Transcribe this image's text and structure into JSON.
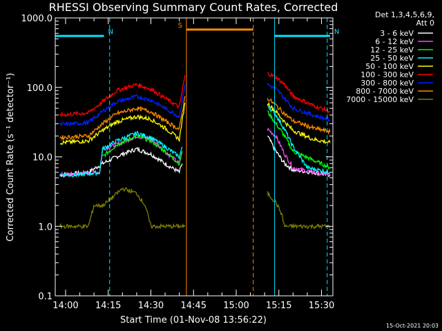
{
  "chart_data": {
    "type": "line",
    "title": "RHESSI Observing Summary Count Rates, Corrected",
    "xlabel": "Start Time (01-Nov-08 13:56:22)",
    "ylabel": "Corrected Count Rate (s⁻¹ detector⁻¹)",
    "y_scale": "log",
    "ylim": [
      0.1,
      1000
    ],
    "xlim": [
      "13:56:22",
      "15:34:00"
    ],
    "x_ticks": [
      "14:00",
      "14:15",
      "14:30",
      "14:45",
      "15:00",
      "15:15",
      "15:30"
    ],
    "y_ticks": [
      "0.1",
      "1.0",
      "10.0",
      "100.0",
      "1000.0"
    ],
    "detectors_label": [
      "Det 1,3,4,5,6,9,",
      "Att 0"
    ],
    "timestamp": "15-Oct-2021 20:03",
    "flags": [
      {
        "label": "N",
        "color": "#00e5ff",
        "start": "13:56:22",
        "end": "14:13:30",
        "level": 550
      },
      {
        "label": "N",
        "color": "#00e5ff",
        "start": "15:13:30",
        "end": "15:33:00",
        "level": 550
      },
      {
        "label": "S",
        "color": "#ff8c00",
        "start": "14:42:30",
        "end": "15:06:00",
        "level": 680
      }
    ],
    "markers": [
      {
        "time": "13:56:22",
        "color": "#00e5ff",
        "style": "solid"
      },
      {
        "time": "14:15:30",
        "color": "#00e5ff",
        "style": "dashed"
      },
      {
        "time": "14:42:30",
        "color": "#ff8c00",
        "style": "solid"
      },
      {
        "time": "15:06:00",
        "color": "#ff8c00",
        "style": "dashed"
      },
      {
        "time": "15:13:30",
        "color": "#00e5ff",
        "style": "solid"
      },
      {
        "time": "15:32:00",
        "color": "#00e5ff",
        "style": "dashed"
      }
    ],
    "series": [
      {
        "name": "3 - 6 keV",
        "color": "#ffffff",
        "segments": [
          [
            [
              "13:58",
              5.5
            ],
            [
              "14:08",
              6
            ],
            [
              "14:13",
              8
            ],
            [
              "14:20",
              11
            ],
            [
              "14:25",
              13
            ],
            [
              "14:30",
              11
            ],
            [
              "14:35",
              8
            ],
            [
              "14:40",
              6
            ],
            [
              "14:41",
              8
            ]
          ],
          [
            [
              "15:11",
              20
            ],
            [
              "15:14",
              12
            ],
            [
              "15:17",
              8
            ],
            [
              "15:20",
              6.5
            ],
            [
              "15:27",
              6
            ],
            [
              "15:33",
              5.5
            ]
          ]
        ]
      },
      {
        "name": "6 - 12 keV",
        "color": "#ff44ff",
        "segments": [
          [
            [
              "13:58",
              5.5
            ],
            [
              "14:12",
              6
            ],
            [
              "14:13",
              13
            ],
            [
              "14:18",
              15
            ],
            [
              "14:25",
              20
            ],
            [
              "14:30",
              18
            ],
            [
              "14:35",
              12
            ],
            [
              "14:40",
              8
            ],
            [
              "14:41",
              12
            ]
          ],
          [
            [
              "15:11",
              25
            ],
            [
              "15:14",
              20
            ],
            [
              "15:17",
              11
            ],
            [
              "15:20",
              7
            ],
            [
              "15:27",
              6
            ],
            [
              "15:33",
              5.5
            ]
          ]
        ]
      },
      {
        "name": "12 - 25 keV",
        "color": "#00ff00",
        "segments": [
          [
            [
              "14:13",
              10
            ],
            [
              "14:18",
              15
            ],
            [
              "14:25",
              20
            ],
            [
              "14:30",
              17
            ],
            [
              "14:35",
              12
            ],
            [
              "14:40",
              8
            ],
            [
              "14:41",
              12
            ]
          ],
          [
            [
              "15:11",
              45
            ],
            [
              "15:14",
              30
            ],
            [
              "15:17",
              20
            ],
            [
              "15:20",
              12
            ],
            [
              "15:27",
              9
            ],
            [
              "15:33",
              7
            ]
          ]
        ]
      },
      {
        "name": "25 - 50 keV",
        "color": "#00ffff",
        "segments": [
          [
            [
              "13:58",
              5.5
            ],
            [
              "14:05",
              5.5
            ],
            [
              "14:12",
              6
            ],
            [
              "14:13",
              13
            ],
            [
              "14:18",
              17
            ],
            [
              "14:25",
              22
            ],
            [
              "14:30",
              19
            ],
            [
              "14:35",
              14
            ],
            [
              "14:40",
              10
            ],
            [
              "14:41",
              14
            ]
          ],
          [
            [
              "15:11",
              55
            ],
            [
              "15:14",
              40
            ],
            [
              "15:17",
              25
            ],
            [
              "15:20",
              14
            ],
            [
              "15:25",
              7
            ],
            [
              "15:33",
              6
            ]
          ]
        ]
      },
      {
        "name": "50 - 100 keV",
        "color": "#ffff00",
        "segments": [
          [
            [
              "13:58",
              16
            ],
            [
              "14:08",
              17
            ],
            [
              "14:13",
              24
            ],
            [
              "14:18",
              32
            ],
            [
              "14:25",
              38
            ],
            [
              "14:30",
              35
            ],
            [
              "14:35",
              26
            ],
            [
              "14:40",
              18
            ],
            [
              "14:42",
              60
            ]
          ],
          [
            [
              "15:11",
              60
            ],
            [
              "15:14",
              45
            ],
            [
              "15:17",
              32
            ],
            [
              "15:20",
              24
            ],
            [
              "15:27",
              18
            ],
            [
              "15:33",
              16
            ]
          ]
        ]
      },
      {
        "name": "100 - 300 keV",
        "color": "#ff0000",
        "segments": [
          [
            [
              "13:58",
              40
            ],
            [
              "14:08",
              43
            ],
            [
              "14:13",
              62
            ],
            [
              "14:18",
              90
            ],
            [
              "14:25",
              110
            ],
            [
              "14:30",
              95
            ],
            [
              "14:35",
              70
            ],
            [
              "14:40",
              52
            ],
            [
              "14:42",
              150
            ]
          ],
          [
            [
              "15:11",
              160
            ],
            [
              "15:14",
              140
            ],
            [
              "15:17",
              110
            ],
            [
              "15:20",
              75
            ],
            [
              "15:27",
              55
            ],
            [
              "15:33",
              45
            ]
          ]
        ]
      },
      {
        "name": "300 - 800 keV",
        "color": "#0022ff",
        "segments": [
          [
            [
              "13:58",
              29
            ],
            [
              "14:08",
              31
            ],
            [
              "14:13",
              45
            ],
            [
              "14:18",
              62
            ],
            [
              "14:25",
              74
            ],
            [
              "14:30",
              66
            ],
            [
              "14:35",
              50
            ],
            [
              "14:40",
              38
            ],
            [
              "14:42",
              110
            ]
          ],
          [
            [
              "15:11",
              110
            ],
            [
              "15:14",
              95
            ],
            [
              "15:17",
              70
            ],
            [
              "15:20",
              50
            ],
            [
              "15:27",
              40
            ],
            [
              "15:33",
              34
            ]
          ]
        ]
      },
      {
        "name": "800 - 7000 keV",
        "color": "#ff8c00",
        "segments": [
          [
            [
              "13:58",
              19
            ],
            [
              "14:08",
              20
            ],
            [
              "14:13",
              30
            ],
            [
              "14:18",
              42
            ],
            [
              "14:25",
              50
            ],
            [
              "14:30",
              45
            ],
            [
              "14:35",
              33
            ],
            [
              "14:40",
              25
            ],
            [
              "14:42",
              75
            ]
          ],
          [
            [
              "15:11",
              70
            ],
            [
              "15:14",
              55
            ],
            [
              "15:17",
              42
            ],
            [
              "15:20",
              33
            ],
            [
              "15:27",
              26
            ],
            [
              "15:33",
              23
            ]
          ]
        ]
      },
      {
        "name": "7000 - 15000 keV",
        "color": "#808000",
        "segments": [
          [
            [
              "13:58",
              1
            ],
            [
              "14:08",
              1
            ],
            [
              "14:10",
              2
            ],
            [
              "14:13",
              2
            ],
            [
              "14:15",
              2.3
            ],
            [
              "14:20",
              3.5
            ],
            [
              "14:25",
              3
            ],
            [
              "14:28",
              2
            ],
            [
              "14:30",
              1
            ],
            [
              "14:42",
              1
            ]
          ],
          [
            [
              "15:11",
              3
            ],
            [
              "15:14",
              2.2
            ],
            [
              "15:16",
              1.5
            ],
            [
              "15:17",
              1
            ],
            [
              "15:20",
              1
            ],
            [
              "15:27",
              1
            ],
            [
              "15:33",
              1
            ]
          ]
        ]
      }
    ]
  }
}
